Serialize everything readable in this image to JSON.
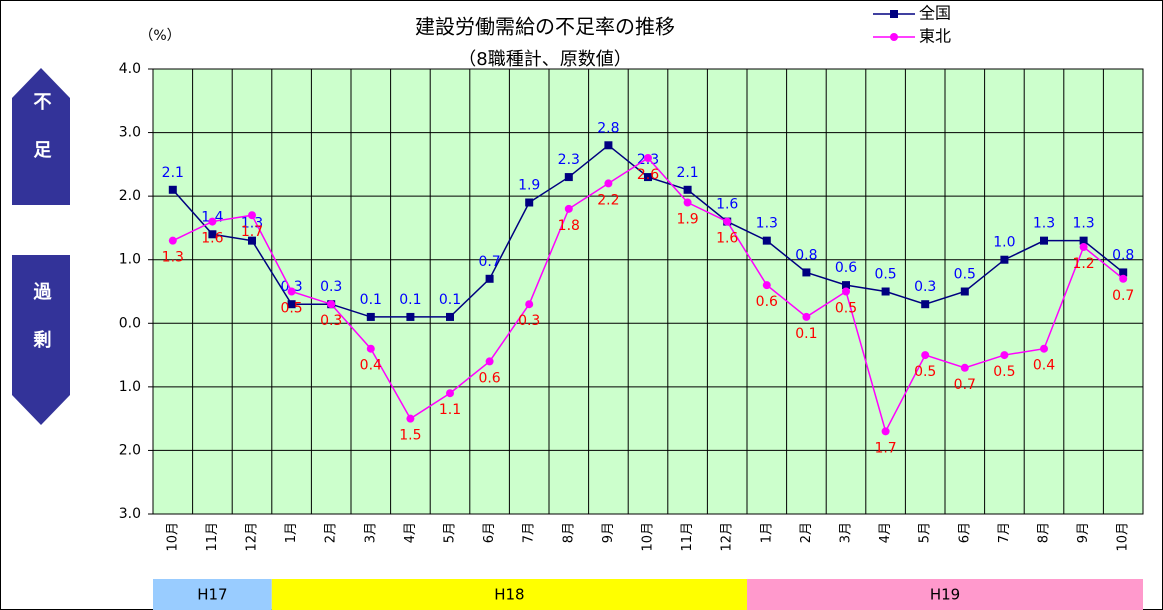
{
  "chart_data": {
    "type": "line",
    "title": "建設労働需給の不足率の推移",
    "subtitle": "（8職種計、原数値）",
    "unit_label": "（%）",
    "side_labels": [
      "不足",
      "過剰"
    ],
    "categories": [
      "10月",
      "11月",
      "12月",
      "1月",
      "2月",
      "3月",
      "4月",
      "5月",
      "6月",
      "7月",
      "8月",
      "9月",
      "10月",
      "11月",
      "12月",
      "1月",
      "2月",
      "3月",
      "4月",
      "5月",
      "6月",
      "7月",
      "8月",
      "9月",
      "10月"
    ],
    "periods": [
      "H17",
      "H18",
      "H19"
    ],
    "period_colors": [
      "#99ccff",
      "#ffff00",
      "#ff99cc"
    ],
    "ylim": [
      -3,
      4
    ],
    "yticks": [
      {
        "value": 4,
        "label": "4.0"
      },
      {
        "value": 3,
        "label": "3.0"
      },
      {
        "value": 2,
        "label": "2.0"
      },
      {
        "value": 1,
        "label": "1.0"
      },
      {
        "value": 0,
        "label": "0.0"
      },
      {
        "value": -1,
        "label": "1.0"
      },
      {
        "value": -2,
        "label": "2.0"
      },
      {
        "value": -3,
        "label": "3.0"
      }
    ],
    "grid": true,
    "legend": "top-right",
    "plot_background": "#ccffcc",
    "series": [
      {
        "name": "全国",
        "color": "#000080",
        "marker": "square",
        "label_color": "#0000ff",
        "values": [
          2.1,
          1.4,
          1.3,
          0.3,
          0.3,
          0.1,
          0.1,
          0.1,
          0.7,
          1.9,
          2.3,
          2.8,
          2.3,
          2.1,
          1.6,
          1.3,
          0.8,
          0.6,
          0.5,
          0.3,
          0.5,
          1.0,
          1.3,
          1.3,
          0.8
        ],
        "value_labels": [
          "2.1",
          "1.4",
          "1.3",
          "0.3",
          "0.3",
          "0.1",
          "0.1",
          "0.1",
          "0.7",
          "1.9",
          "2.3",
          "2.8",
          "2.3",
          "2.1",
          "1.6",
          "1.3",
          "0.8",
          "0.6",
          "0.5",
          "0.3",
          "0.5",
          "1.0",
          "1.3",
          "1.3",
          "0.8"
        ]
      },
      {
        "name": "東北",
        "color": "#ff00ff",
        "marker": "circle",
        "label_color": "#ff0000",
        "values": [
          1.3,
          1.6,
          1.7,
          0.5,
          0.3,
          -0.4,
          -1.5,
          -1.1,
          -0.6,
          0.3,
          1.8,
          2.2,
          2.6,
          1.9,
          1.6,
          0.6,
          0.1,
          0.5,
          -1.7,
          -0.5,
          -0.7,
          -0.5,
          -0.4,
          1.2,
          0.7
        ],
        "value_labels": [
          "1.3",
          "1.6",
          "1.7",
          "0.5",
          "0.3",
          "0.4",
          "1.5",
          "1.1",
          "0.6",
          "0.3",
          "1.8",
          "2.2",
          "2.6",
          "1.9",
          "1.6",
          "0.6",
          "0.1",
          "0.5",
          "1.7",
          "0.5",
          "0.7",
          "0.5",
          "0.4",
          "1.2",
          "0.7"
        ]
      }
    ]
  }
}
